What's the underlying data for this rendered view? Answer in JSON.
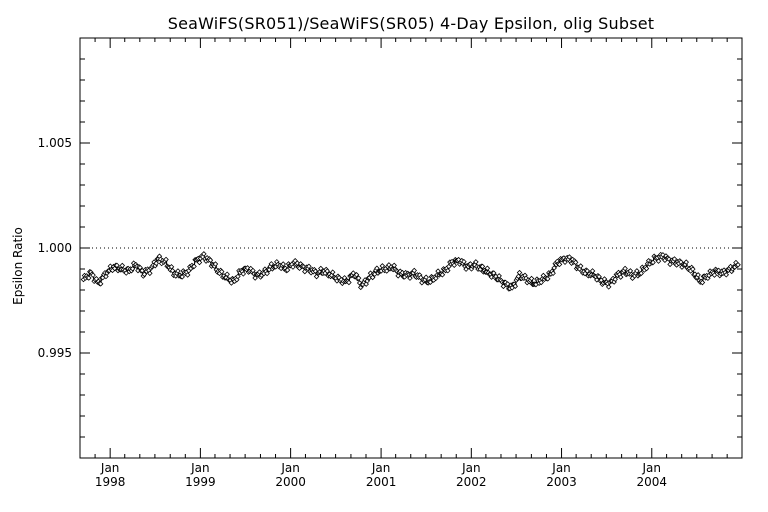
{
  "chart_data": {
    "type": "line",
    "title": "SeaWiFS(SR051)/SeaWiFS(SR05) 4-Day Epsilon, olig Subset",
    "xlabel": "",
    "ylabel": "Epsilon Ratio",
    "xlim": [
      "1997-09-01",
      "2004-12-31"
    ],
    "ylim": [
      0.99,
      1.01
    ],
    "yticks": [
      "1.005",
      "1.000",
      "0.995"
    ],
    "ytick_values": [
      1.005,
      1.0,
      0.995
    ],
    "xticks": [
      {
        "month": "Jan",
        "year": "1998",
        "date": "1998-01-01"
      },
      {
        "month": "Jan",
        "year": "1999",
        "date": "1999-01-01"
      },
      {
        "month": "Jan",
        "year": "2000",
        "date": "2000-01-01"
      },
      {
        "month": "Jan",
        "year": "2001",
        "date": "2001-01-01"
      },
      {
        "month": "Jan",
        "year": "2002",
        "date": "2002-01-01"
      },
      {
        "month": "Jan",
        "year": "2003",
        "date": "2003-01-01"
      },
      {
        "month": "Jan",
        "year": "2004",
        "date": "2004-01-01"
      }
    ],
    "reference_line": 1.0,
    "reference_line_style": "dotted",
    "grid": false,
    "series": [
      {
        "marker": "diamond",
        "color": "#000000",
        "x": [
          "1997-09",
          "1997-10",
          "1997-11",
          "1997-12",
          "1998-01",
          "1998-02",
          "1998-03",
          "1998-04",
          "1998-05",
          "1998-06",
          "1998-07",
          "1998-08",
          "1998-09",
          "1998-10",
          "1998-11",
          "1998-12",
          "1999-01",
          "1999-02",
          "1999-03",
          "1999-04",
          "1999-05",
          "1999-06",
          "1999-07",
          "1999-08",
          "1999-09",
          "1999-10",
          "1999-11",
          "1999-12",
          "2000-01",
          "2000-02",
          "2000-03",
          "2000-04",
          "2000-05",
          "2000-06",
          "2000-07",
          "2000-08",
          "2000-09",
          "2000-10",
          "2000-11",
          "2000-12",
          "2001-01",
          "2001-02",
          "2001-03",
          "2001-04",
          "2001-05",
          "2001-06",
          "2001-07",
          "2001-08",
          "2001-09",
          "2001-10",
          "2001-11",
          "2001-12",
          "2002-01",
          "2002-02",
          "2002-03",
          "2002-04",
          "2002-05",
          "2002-06",
          "2002-07",
          "2002-08",
          "2002-09",
          "2002-10",
          "2002-11",
          "2002-12",
          "2003-01",
          "2003-02",
          "2003-03",
          "2003-04",
          "2003-05",
          "2003-06",
          "2003-07",
          "2003-08",
          "2003-09",
          "2003-10",
          "2003-11",
          "2003-12",
          "2004-01",
          "2004-02",
          "2004-03",
          "2004-04",
          "2004-05",
          "2004-06",
          "2004-07",
          "2004-08",
          "2004-09",
          "2004-10",
          "2004-11",
          "2004-12"
        ],
        "y": [
          0.9985,
          0.9988,
          0.9983,
          0.9988,
          0.9991,
          0.999,
          0.9989,
          0.9992,
          0.9988,
          0.999,
          0.9995,
          0.9993,
          0.9988,
          0.9987,
          0.9989,
          0.9994,
          0.9996,
          0.9993,
          0.9989,
          0.9986,
          0.9984,
          0.9989,
          0.999,
          0.9987,
          0.9988,
          0.9991,
          0.9992,
          0.999,
          0.9993,
          0.9991,
          0.999,
          0.9988,
          0.9989,
          0.9987,
          0.9985,
          0.9984,
          0.9988,
          0.9982,
          0.9986,
          0.9989,
          0.999,
          0.9991,
          0.9988,
          0.9987,
          0.9988,
          0.9985,
          0.9984,
          0.9987,
          0.9989,
          0.9993,
          0.9994,
          0.9991,
          0.9992,
          0.999,
          0.9988,
          0.9986,
          0.9983,
          0.9981,
          0.9987,
          0.9985,
          0.9983,
          0.9985,
          0.9987,
          0.9993,
          0.9995,
          0.9994,
          0.999,
          0.9988,
          0.9987,
          0.9984,
          0.9983,
          0.9987,
          0.9989,
          0.9987,
          0.9988,
          0.9992,
          0.9995,
          0.9996,
          0.9994,
          0.9993,
          0.9992,
          0.9989,
          0.9984,
          0.9987,
          0.9989,
          0.9988,
          0.999,
          0.9992
        ]
      }
    ]
  }
}
